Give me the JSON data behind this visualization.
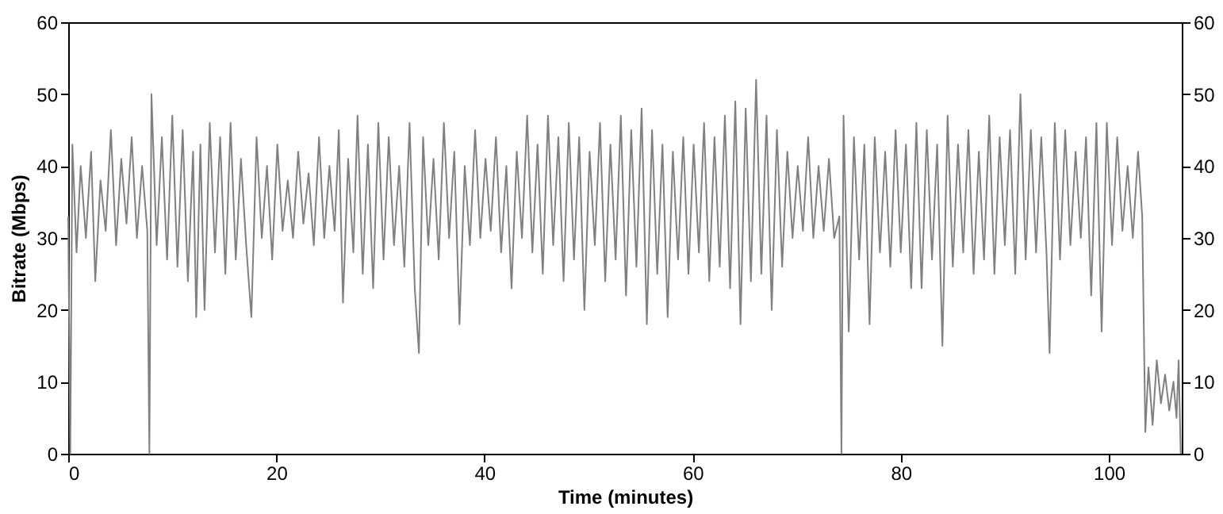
{
  "chart_data": {
    "type": "line",
    "xlabel": "Time (minutes)",
    "ylabel": "Bitrate (Mbps)",
    "xlim": [
      0,
      107
    ],
    "xticks": [
      0,
      20,
      40,
      60,
      80,
      100
    ],
    "ylim": [
      0,
      60
    ],
    "yticks": [
      0,
      10,
      20,
      30,
      40,
      50,
      60
    ],
    "y2lim": [
      0,
      60
    ],
    "y2ticks": [
      0,
      10,
      20,
      30,
      40,
      50,
      60
    ],
    "grid": false,
    "marker": "none",
    "line_style": "solid",
    "series": [
      {
        "color": "#808080",
        "x": [
          0,
          0.2,
          0.4,
          0.8,
          1.2,
          1.7,
          2.2,
          2.6,
          3.1,
          3.6,
          4.1,
          4.6,
          5.1,
          5.6,
          6.1,
          6.6,
          7.1,
          7.6,
          7.8,
          8.0,
          8.5,
          9.0,
          9.5,
          10.0,
          10.5,
          11.0,
          11.5,
          12.0,
          12.3,
          12.7,
          13.1,
          13.6,
          14.1,
          14.6,
          15.1,
          15.6,
          16.1,
          16.6,
          17.1,
          17.6,
          18.1,
          18.6,
          19.1,
          19.6,
          20.1,
          20.6,
          21.1,
          21.6,
          22.1,
          22.6,
          23.1,
          23.6,
          24.1,
          24.6,
          25.1,
          25.6,
          26.0,
          26.4,
          26.9,
          27.4,
          27.8,
          28.3,
          28.8,
          29.3,
          29.8,
          30.3,
          30.8,
          31.3,
          31.8,
          32.3,
          32.8,
          33.3,
          33.7,
          34.1,
          34.6,
          35.1,
          35.6,
          36.1,
          36.6,
          37.1,
          37.6,
          38.1,
          38.6,
          39.1,
          39.6,
          40.1,
          40.6,
          41.1,
          41.6,
          42.1,
          42.6,
          43.1,
          43.6,
          44.1,
          44.6,
          45.1,
          45.6,
          46.1,
          46.6,
          47.1,
          47.6,
          48.1,
          48.6,
          49.1,
          49.6,
          50.1,
          50.6,
          51.1,
          51.6,
          52.1,
          52.6,
          53.1,
          53.6,
          54.1,
          54.6,
          55.1,
          55.6,
          56.1,
          56.6,
          57.1,
          57.6,
          58.1,
          58.6,
          59.1,
          59.6,
          60.1,
          60.6,
          61.1,
          61.6,
          62.1,
          62.6,
          63.1,
          63.6,
          64.1,
          64.6,
          65.1,
          65.6,
          66.1,
          66.6,
          67.1,
          67.6,
          68.1,
          68.6,
          69.1,
          69.6,
          70.1,
          70.6,
          71.1,
          71.6,
          72.1,
          72.6,
          73.1,
          73.6,
          74.1,
          74.3,
          74.5,
          75.0,
          75.5,
          76.0,
          76.5,
          77.0,
          77.5,
          78.0,
          78.5,
          79.0,
          79.5,
          80.0,
          80.5,
          81.0,
          81.5,
          82.0,
          82.5,
          83.0,
          83.5,
          84.0,
          84.5,
          85.0,
          85.5,
          86.0,
          86.5,
          87.0,
          87.5,
          88.0,
          88.5,
          89.0,
          89.5,
          90.0,
          90.5,
          91.0,
          91.5,
          92.0,
          92.5,
          93.0,
          93.5,
          94.0,
          94.3,
          94.8,
          95.3,
          95.8,
          96.3,
          96.8,
          97.3,
          97.8,
          98.3,
          98.8,
          99.3,
          99.8,
          100.3,
          100.8,
          101.3,
          101.8,
          102.3,
          102.8,
          103.2,
          103.5,
          103.8,
          104.2,
          104.6,
          105.0,
          105.4,
          105.8,
          106.2,
          106.5,
          106.7,
          106.9
        ],
        "values": [
          33,
          0,
          43,
          28,
          40,
          30,
          42,
          24,
          38,
          31,
          45,
          29,
          41,
          32,
          44,
          30,
          40,
          31,
          0,
          50,
          29,
          44,
          27,
          47,
          26,
          45,
          24,
          42,
          19,
          43,
          20,
          46,
          28,
          44,
          25,
          46,
          27,
          41,
          29,
          19,
          44,
          30,
          40,
          27,
          43,
          31,
          38,
          30,
          42,
          32,
          39,
          29,
          44,
          30,
          40,
          31,
          45,
          21,
          41,
          28,
          47,
          25,
          43,
          23,
          46,
          27,
          44,
          29,
          40,
          26,
          46,
          23,
          14,
          44,
          29,
          41,
          27,
          46,
          30,
          42,
          18,
          40,
          29,
          45,
          30,
          41,
          31,
          44,
          28,
          40,
          23,
          42,
          30,
          47,
          28,
          43,
          25,
          47,
          29,
          44,
          24,
          46,
          27,
          44,
          20,
          42,
          29,
          46,
          24,
          43,
          27,
          47,
          22,
          45,
          26,
          48,
          18,
          45,
          25,
          43,
          19,
          42,
          27,
          44,
          25,
          43,
          28,
          46,
          24,
          44,
          26,
          47,
          23,
          49,
          18,
          48,
          24,
          52,
          25,
          47,
          20,
          45,
          26,
          42,
          30,
          40,
          31,
          44,
          30,
          40,
          31,
          41,
          30,
          33,
          0,
          47,
          17,
          44,
          27,
          43,
          18,
          44,
          28,
          42,
          26,
          45,
          28,
          43,
          23,
          46,
          23,
          45,
          27,
          43,
          15,
          47,
          26,
          43,
          28,
          45,
          25,
          42,
          27,
          47,
          25,
          44,
          29,
          45,
          25,
          50,
          27,
          45,
          28,
          44,
          28,
          14,
          46,
          27,
          45,
          29,
          42,
          30,
          44,
          22,
          46,
          17,
          46,
          29,
          44,
          31,
          40,
          30,
          42,
          33,
          3,
          12,
          4,
          13,
          7,
          11,
          6,
          10,
          5,
          13,
          0
        ]
      }
    ]
  }
}
